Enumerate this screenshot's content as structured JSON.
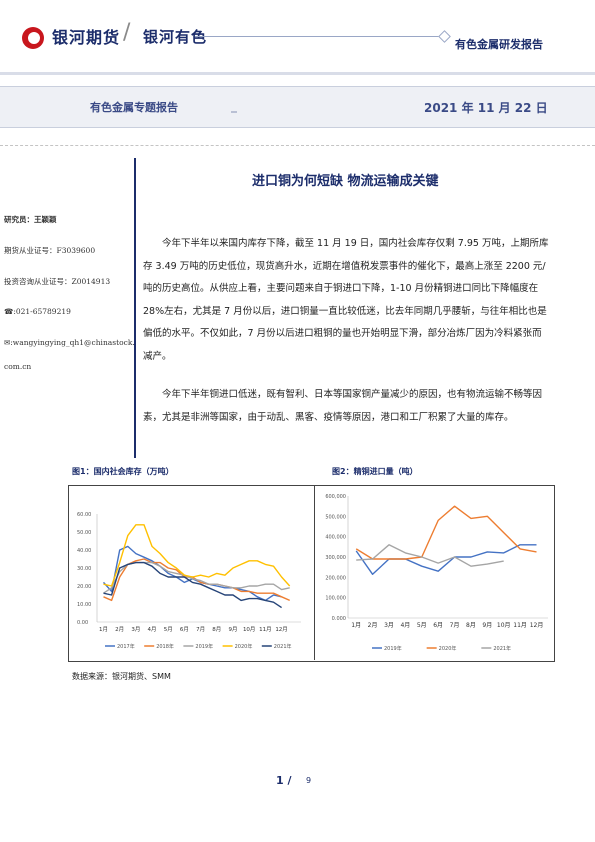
{
  "header": {
    "logo_text": "银河期货",
    "slash": "/",
    "logo_sub": "银河有色",
    "report_type": "有色金属研发报告"
  },
  "subheader": {
    "title": "有色金属专题报告",
    "date": "2021 年 11 月 22 日"
  },
  "article": {
    "title": "进口铜为何短缺  物流运输成关键",
    "paragraphs": [
      "今年下半年以来国内库存下降，截至 11 月 19 日，国内社会库存仅剩 7.95 万吨，上期所库存 3.49 万吨的历史低位，现货高升水，近期在增值税发票事件的催化下，最高上涨至 2200 元/吨的历史高位。从供应上看，主要问题来自于铜进口下降，1-10 月份精铜进口同比下降幅度在 28%左右，尤其是 7 月份以后，进口铜量一直比较低迷，比去年同期几乎腰斩，与往年相比也是偏低的水平。不仅如此，7 月份以后进口粗铜的量也开始明显下滑，部分冶炼厂因为冷料紧张而减产。",
      "今年下半年铜进口低迷，既有智利、日本等国家铜产量减少的原因，也有物流运输不畅等因素，尤其是非洲等国家，由于动乱、黑客、疫情等原因，港口和工厂积累了大量的库存。"
    ]
  },
  "sidebar": {
    "researcher": "研究员：王颖颖",
    "license1": "期货从业证号：F3039600",
    "license2": "投资咨询从业证号：Z0014913",
    "phone": "☎:021-65789219",
    "email_line1": "✉:wangyingying_qh1@chinastock.",
    "email_line2": "com.cn"
  },
  "figures": {
    "fig1_caption": "图1：国内社会库存（万吨）",
    "fig2_caption": "图2：精铜进口量（吨）",
    "source": "数据来源：银河期货、SMM"
  },
  "colors": {
    "brand_navy": "#1c2d6b",
    "brand_red": "#c8161d"
  },
  "chart_data": [
    {
      "type": "line",
      "title": "",
      "xlabel": "",
      "ylabel": "",
      "x_ticks": [
        "1月",
        "2月",
        "3月",
        "4月",
        "5月",
        "6月",
        "7月",
        "8月",
        "9月",
        "10月",
        "11月",
        "12月"
      ],
      "y_ticks": [
        "0.00",
        "10.00",
        "20.00",
        "30.00",
        "40.00",
        "50.00",
        "60.00"
      ],
      "ylim": [
        0,
        60
      ],
      "x": [
        1,
        1.5,
        2,
        2.5,
        3,
        3.5,
        4,
        4.5,
        5,
        5.5,
        6,
        6.5,
        7,
        7.5,
        8,
        8.5,
        9,
        9.5,
        10,
        10.5,
        11,
        11.5,
        12,
        12.5
      ],
      "series": [
        {
          "name": "2017年",
          "color": "#4472c4",
          "values": [
            22,
            17,
            40,
            42,
            38,
            36,
            34,
            31,
            27,
            25,
            22,
            24,
            22,
            21,
            20,
            19,
            19,
            18,
            17,
            14,
            12,
            15,
            14,
            null
          ]
        },
        {
          "name": "2018年",
          "color": "#ed7d31",
          "values": [
            14,
            12,
            25,
            32,
            34,
            35,
            33,
            33,
            30,
            29,
            25,
            25,
            22,
            21,
            21,
            20,
            19,
            17,
            17,
            16,
            16,
            16,
            14,
            12
          ]
        },
        {
          "name": "2019年",
          "color": "#a5a5a5",
          "values": [
            16,
            19,
            28,
            32,
            33,
            33,
            33,
            31,
            28,
            27,
            26,
            24,
            23,
            21,
            21,
            20,
            19,
            19,
            20,
            20,
            21,
            21,
            18,
            19
          ]
        },
        {
          "name": "2020年",
          "color": "#ffc000",
          "values": [
            21,
            20,
            33,
            48,
            54,
            54,
            42,
            38,
            33,
            30,
            26,
            25,
            26,
            25,
            27,
            26,
            30,
            32,
            34,
            34,
            32,
            31,
            25,
            20
          ]
        },
        {
          "name": "2021年",
          "color": "#264478",
          "values": [
            16,
            15,
            30,
            32,
            33,
            33,
            31,
            27,
            25,
            25,
            25,
            22,
            21,
            19,
            17,
            15,
            15,
            12,
            13,
            13,
            12,
            11,
            8,
            null
          ]
        }
      ]
    },
    {
      "type": "line",
      "title": "",
      "xlabel": "",
      "ylabel": "",
      "categories": [
        "1月",
        "2月",
        "3月",
        "4月",
        "5月",
        "6月",
        "7月",
        "8月",
        "9月",
        "10月",
        "11月",
        "12月"
      ],
      "y_ticks": [
        "0.000",
        "100,000",
        "200,000",
        "300,000",
        "400,000",
        "500,000",
        "600,000"
      ],
      "ylim": [
        0,
        600000
      ],
      "series": [
        {
          "name": "2019年",
          "color": "#4472c4",
          "values": [
            330000,
            215000,
            290000,
            290000,
            255000,
            230000,
            300000,
            300000,
            325000,
            320000,
            360000,
            360000
          ]
        },
        {
          "name": "2020年",
          "color": "#ed7d31",
          "values": [
            340000,
            290000,
            290000,
            290000,
            300000,
            480000,
            550000,
            490000,
            500000,
            420000,
            340000,
            325000
          ]
        },
        {
          "name": "2021年",
          "color": "#a5a5a5",
          "values": [
            285000,
            290000,
            360000,
            320000,
            300000,
            270000,
            300000,
            255000,
            265000,
            280000,
            null,
            null
          ]
        }
      ]
    }
  ],
  "page": {
    "current": "1",
    "sep": "/",
    "total": "9"
  }
}
